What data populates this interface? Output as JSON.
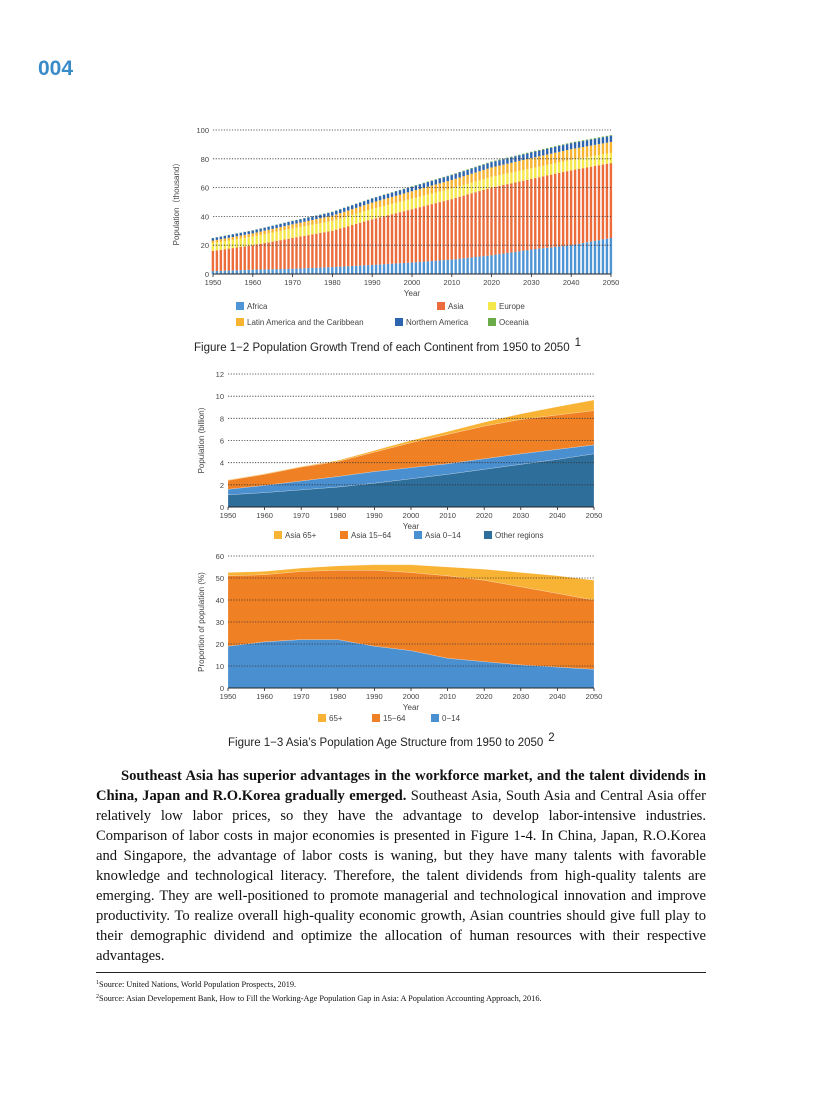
{
  "page_number": "004",
  "chart_data": [
    {
      "type": "bar",
      "stacked": true,
      "title": "Figure 1−2    Population Growth Trend of each Continent from 1950 to 2050",
      "title_note": "1",
      "xlabel": "Year",
      "ylabel": "Population（thousand）",
      "x": [
        1950,
        1960,
        1970,
        1980,
        1990,
        2000,
        2010,
        2020,
        2030,
        2040,
        2050
      ],
      "xticks": [
        "1950",
        "1960",
        "1970",
        "1980",
        "1990",
        "2000",
        "2010",
        "2020",
        "2030",
        "2040",
        "2050"
      ],
      "yticks": [
        "0",
        "20",
        "40",
        "60",
        "80",
        "100"
      ],
      "ylim": [
        0,
        100
      ],
      "grid": true,
      "bar_interval": "annual",
      "legend_position": "bottom",
      "series": [
        {
          "name": "Africa",
          "color": "#4f94d4",
          "values": [
            2,
            3,
            3.6,
            4.8,
            6.3,
            8,
            10,
            13,
            17,
            20,
            25
          ]
        },
        {
          "name": "Asia",
          "color": "#ec6d3b",
          "values": [
            14,
            17,
            21.4,
            25.2,
            31.7,
            37,
            42,
            47,
            49,
            52,
            52
          ]
        },
        {
          "name": "Europe",
          "color": "#f5e84a",
          "values": [
            5.5,
            6,
            6.6,
            6.9,
            7.2,
            7.3,
            7.4,
            7.5,
            7.4,
            7.3,
            7.1
          ]
        },
        {
          "name": "Latin America and the Caribbean",
          "color": "#f7b430",
          "values": [
            1.7,
            2.2,
            2.9,
            3.6,
            4.4,
            5.2,
            5.9,
            6.5,
            7.1,
            7.4,
            7.6
          ]
        },
        {
          "name": "Northern America",
          "color": "#2c64b0",
          "values": [
            1.7,
            2,
            2.3,
            2.5,
            2.8,
            3.1,
            3.4,
            3.7,
            3.9,
            4.1,
            4.2
          ]
        },
        {
          "name": "Oceania",
          "color": "#6aaa48",
          "values": [
            0.13,
            0.16,
            0.19,
            0.23,
            0.27,
            0.31,
            0.36,
            0.43,
            0.48,
            0.52,
            0.57
          ]
        }
      ]
    },
    {
      "type": "area",
      "stacked": true,
      "xlabel": "Year",
      "ylabel": "Population (billion)",
      "x": [
        1950,
        1960,
        1970,
        1980,
        1990,
        2000,
        2010,
        2020,
        2030,
        2040,
        2050
      ],
      "xticks": [
        "1950",
        "1960",
        "1970",
        "1980",
        "1990",
        "2000",
        "2010",
        "2020",
        "2030",
        "2040",
        "2050"
      ],
      "yticks": [
        "0",
        "2",
        "4",
        "6",
        "8",
        "10",
        "12"
      ],
      "ylim": [
        0,
        12
      ],
      "grid": true,
      "legend_position": "bottom",
      "series": [
        {
          "name": "Other regions",
          "color": "#2e6e9a",
          "values": [
            1.1,
            1.3,
            1.55,
            1.8,
            2.15,
            2.55,
            2.95,
            3.4,
            3.85,
            4.3,
            4.8
          ]
        },
        {
          "name": "Asia 0−14",
          "color": "#4a8fd0",
          "values": [
            0.5,
            0.65,
            0.8,
            0.95,
            1.05,
            1.0,
            0.95,
            0.95,
            0.95,
            0.9,
            0.8
          ]
        },
        {
          "name": "Asia 15−64",
          "color": "#f08024",
          "values": [
            0.8,
            1.0,
            1.25,
            1.35,
            1.75,
            2.25,
            2.65,
            2.95,
            3.1,
            3.1,
            3.1
          ]
        },
        {
          "name": "Asia 65+",
          "color": "#f8b234",
          "values": [
            0.05,
            0.05,
            0.05,
            0.1,
            0.15,
            0.2,
            0.25,
            0.35,
            0.5,
            0.75,
            0.95
          ]
        }
      ],
      "legend_order": [
        "Asia 65+",
        "Asia 15−64",
        "Asia 0−14",
        "Other regions"
      ]
    },
    {
      "type": "area",
      "stacked": true,
      "title": "Figure 1−3    Asia’s Population Age Structure from 1950 to 2050",
      "title_note": "2",
      "xlabel": "Year",
      "ylabel": "Proportion of population (%)",
      "x": [
        1950,
        1960,
        1970,
        1980,
        1990,
        2000,
        2010,
        2020,
        2030,
        2040,
        2050
      ],
      "xticks": [
        "1950",
        "1960",
        "1970",
        "1980",
        "1990",
        "2000",
        "2010",
        "2020",
        "2030",
        "2040",
        "2050"
      ],
      "yticks": [
        "0",
        "10",
        "20",
        "30",
        "40",
        "50",
        "60"
      ],
      "ylim": [
        0,
        60
      ],
      "grid": true,
      "legend_position": "bottom",
      "series": [
        {
          "name": "0−14",
          "color": "#4a8fd0",
          "values": [
            19,
            21,
            22,
            22,
            19,
            17,
            13.5,
            12,
            10.5,
            9.5,
            8.5
          ]
        },
        {
          "name": "15−64",
          "color": "#f08024",
          "values": [
            32,
            30.5,
            31,
            31.5,
            34.5,
            35.5,
            37.5,
            37,
            35.5,
            33.5,
            31.5
          ]
        },
        {
          "name": "65+",
          "color": "#f8b234",
          "values": [
            1.5,
            1.5,
            1.5,
            2,
            2.5,
            3.5,
            4,
            5,
            6.5,
            8,
            9
          ]
        }
      ],
      "legend_order": [
        "65+",
        "15−64",
        "0−14"
      ]
    }
  ],
  "body": {
    "bold": "Southeast Asia has superior advantages in the workforce market, and the talent dividends in China, Japan and R.O.Korea gradually emerged.",
    "text": " Southeast Asia, South Asia and Central Asia offer relatively low labor prices, so they have the advantage to develop labor-intensive industries. Comparison of labor costs in major economies is presented in Figure 1-4. In China, Japan, R.O.Korea and Singapore, the advantage of labor costs is waning, but they have many talents with favorable knowledge and technological literacy. Therefore, the talent dividends from high-quality talents are emerging. They are well-positioned to promote managerial and technological innovation and improve productivity. To realize overall high-quality economic growth, Asian countries should give full play to their demographic dividend and optimize the allocation of human resources with their respective advantages."
  },
  "footnotes": [
    {
      "mark": "1",
      "text": "Source: United Nations, World Population Prospects, 2019."
    },
    {
      "mark": "2",
      "text": "Source: Asian Developement Bank, How to Fill the Working-Age Population Gap in Asia: A Population Accounting Approach, 2016."
    }
  ]
}
